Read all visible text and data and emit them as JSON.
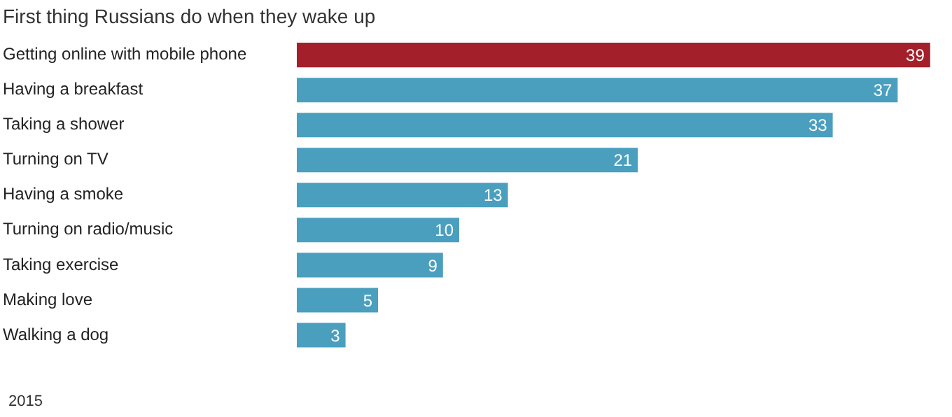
{
  "chart_data": {
    "type": "bar",
    "orientation": "horizontal",
    "title": "First thing Russians do when they wake up",
    "categories": [
      "Getting online with mobile phone",
      "Having a breakfast",
      "Taking a shower",
      "Turning on TV",
      "Having a smoke",
      "Turning on radio/music",
      "Taking exercise",
      "Making love",
      "Walking a dog"
    ],
    "values": [
      39,
      37,
      33,
      21,
      13,
      10,
      9,
      5,
      3
    ],
    "colors": [
      "#a3202a",
      "#4a9fbe",
      "#4a9fbe",
      "#4a9fbe",
      "#4a9fbe",
      "#4a9fbe",
      "#4a9fbe",
      "#4a9fbe",
      "#4a9fbe"
    ],
    "data_labels": true,
    "grid": false,
    "legend": false,
    "annotations": [
      "2015"
    ]
  }
}
